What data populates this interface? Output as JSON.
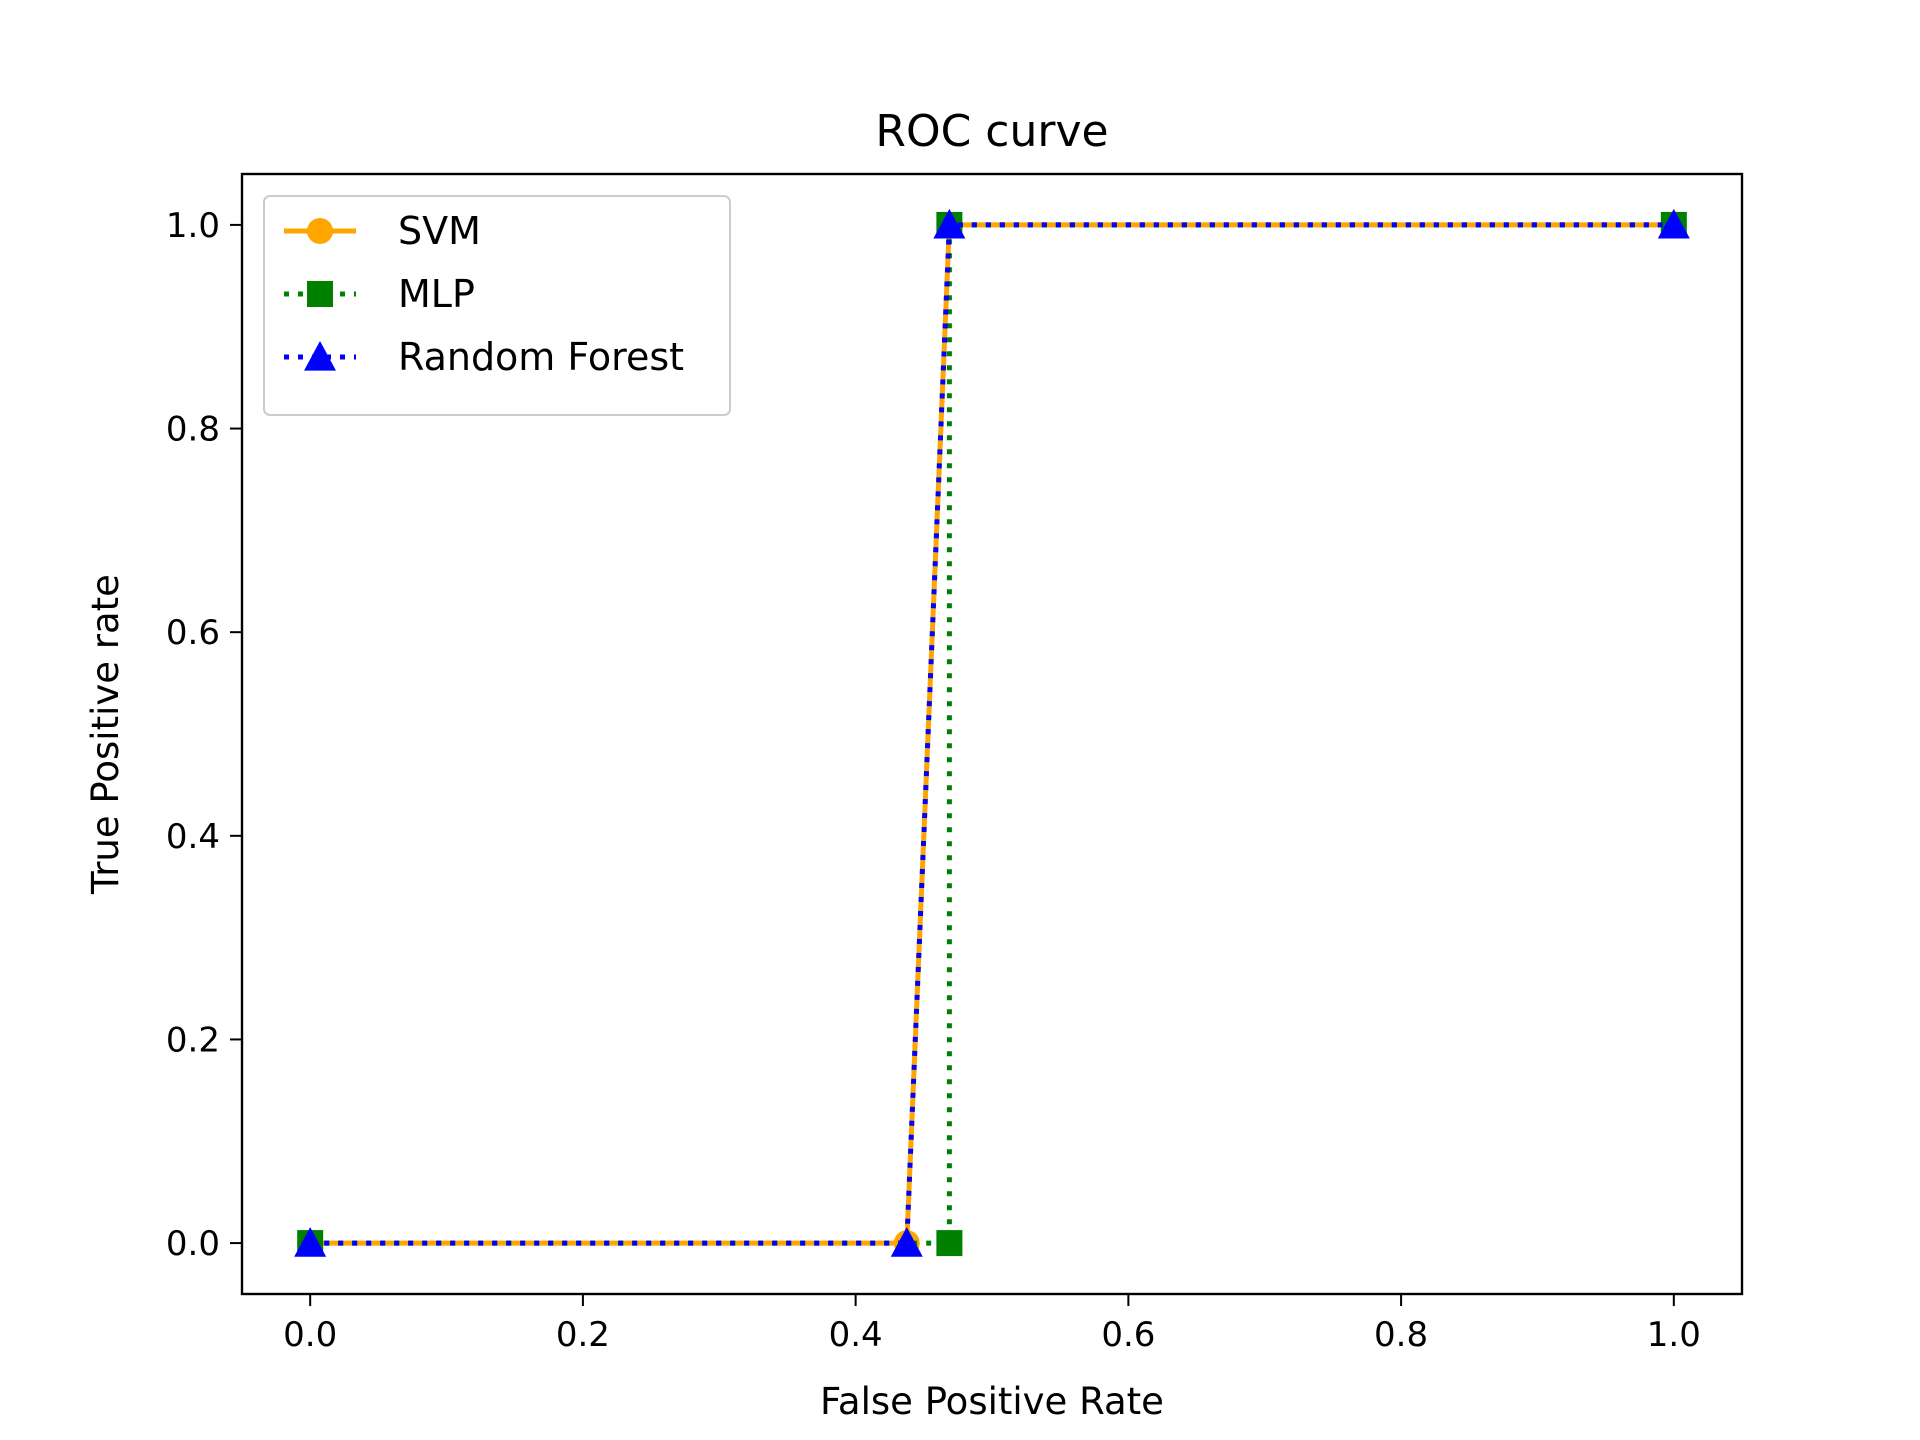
{
  "chart_data": {
    "type": "line",
    "title": "ROC curve",
    "xlabel": "False Positive Rate",
    "ylabel": "True Positive rate",
    "xlim": [
      -0.05,
      1.05
    ],
    "ylim": [
      -0.05,
      1.05
    ],
    "xticks": [
      0.0,
      0.2,
      0.4,
      0.6,
      0.8,
      1.0
    ],
    "yticks": [
      0.0,
      0.2,
      0.4,
      0.6,
      0.8,
      1.0
    ],
    "xtick_labels": [
      "0.0",
      "0.2",
      "0.4",
      "0.6",
      "0.8",
      "1.0"
    ],
    "ytick_labels": [
      "0.0",
      "0.2",
      "0.4",
      "0.6",
      "0.8",
      "1.0"
    ],
    "grid": false,
    "legend_position": "upper-left",
    "series": [
      {
        "name": "SVM",
        "color": "#ffa500",
        "line_style": "solid",
        "marker": "circle",
        "x": [
          0.0,
          0.4375,
          0.46875,
          1.0
        ],
        "y": [
          0.0,
          0.0,
          1.0,
          1.0
        ]
      },
      {
        "name": "MLP",
        "color": "#008000",
        "line_style": "dotted",
        "marker": "square",
        "x": [
          0.0,
          0.46875,
          0.46875,
          1.0
        ],
        "y": [
          0.0,
          0.0,
          1.0,
          1.0
        ]
      },
      {
        "name": "Random Forest",
        "color": "#0000ff",
        "line_style": "dotted",
        "marker": "triangle",
        "x": [
          0.0,
          0.4375,
          0.46875,
          1.0
        ],
        "y": [
          0.0,
          0.0,
          1.0,
          1.0
        ]
      }
    ]
  }
}
